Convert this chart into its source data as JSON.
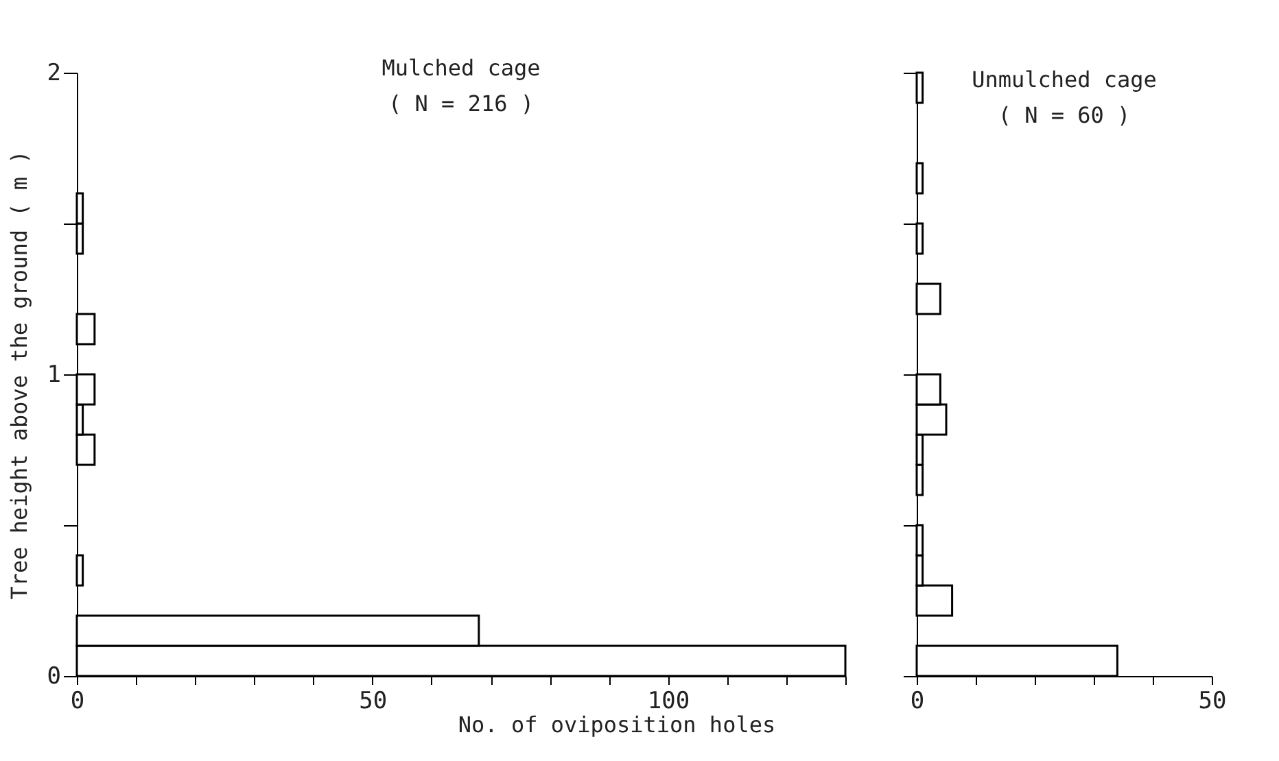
{
  "chart_data": [
    {
      "type": "histogram",
      "orientation": "horizontal",
      "title": "Mulched cage",
      "subtitle": "( N = 216 )",
      "xlabel": "No. of oviposition holes",
      "ylabel": "Tree height above the ground ( m )",
      "bins": [
        0,
        0.1,
        0.2,
        0.3,
        0.4,
        0.5,
        0.6,
        0.7,
        0.8,
        0.9,
        1.0,
        1.1,
        1.2,
        1.3,
        1.4,
        1.5,
        1.6,
        1.7,
        1.8,
        1.9,
        2.0
      ],
      "values": [
        130,
        68,
        0,
        1,
        0,
        0,
        0,
        3,
        1,
        3,
        0,
        3,
        0,
        0,
        1,
        1,
        0,
        0,
        0,
        0
      ],
      "color": "#ffffff",
      "xlim": [
        0,
        130
      ],
      "xticks": [
        0,
        {
          "value": 10,
          "label": null
        },
        {
          "value": 20,
          "label": null
        },
        {
          "value": 30,
          "label": null
        },
        {
          "value": 40,
          "label": null
        },
        50,
        {
          "value": 60,
          "label": null
        },
        {
          "value": 70,
          "label": null
        },
        {
          "value": 80,
          "label": null
        },
        {
          "value": 90,
          "label": null
        },
        100,
        {
          "value": 110,
          "label": null
        },
        {
          "value": 120,
          "label": null
        },
        {
          "value": 130,
          "label": null
        }
      ],
      "ylim": [
        0,
        2
      ],
      "yticks": [
        0,
        {
          "value": 0.5,
          "label": null
        },
        1,
        {
          "value": 1.5,
          "label": null
        },
        2
      ],
      "grid": false
    },
    {
      "type": "histogram",
      "orientation": "horizontal",
      "title": "Unmulched cage",
      "subtitle": "( N = 60 )",
      "bins": [
        0,
        0.1,
        0.2,
        0.3,
        0.4,
        0.5,
        0.6,
        0.7,
        0.8,
        0.9,
        1.0,
        1.1,
        1.2,
        1.3,
        1.4,
        1.5,
        1.6,
        1.7,
        1.8,
        1.9,
        2.0
      ],
      "values": [
        34,
        0,
        6,
        1,
        1,
        0,
        1,
        1,
        5,
        4,
        0,
        0,
        4,
        0,
        1,
        0,
        1,
        0,
        0,
        1
      ],
      "color": "#ffffff",
      "xlim": [
        0,
        50
      ],
      "xticks": [
        0,
        {
          "value": 10,
          "label": null
        },
        {
          "value": 20,
          "label": null
        },
        {
          "value": 30,
          "label": null
        },
        {
          "value": 40,
          "label": null
        },
        50
      ],
      "ylim": [
        0,
        2
      ],
      "yticks": [
        {
          "value": 0,
          "label": null
        },
        {
          "value": 0.5,
          "label": null
        },
        {
          "value": 1,
          "label": null
        },
        {
          "value": 1.5,
          "label": null
        },
        {
          "value": 2,
          "label": null
        }
      ],
      "tick_labels": "x",
      "grid": false
    }
  ]
}
